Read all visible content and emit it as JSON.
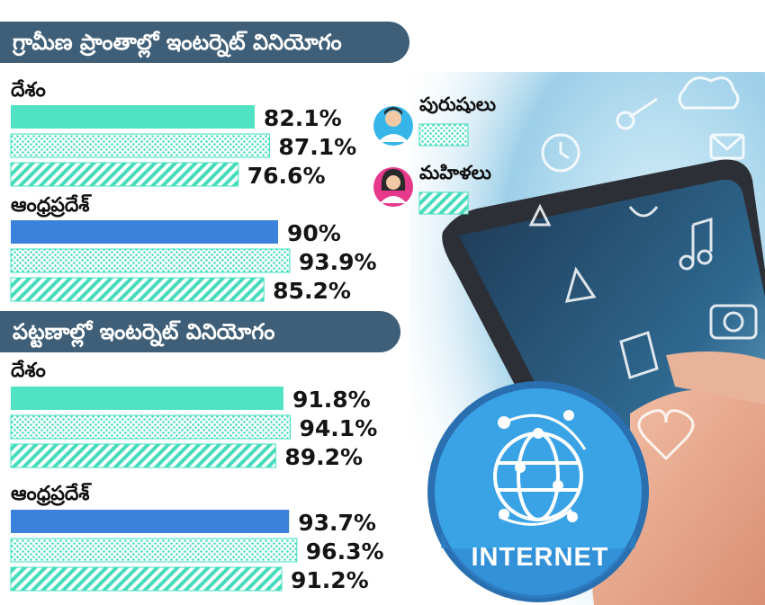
{
  "legend": {
    "men": {
      "label": "పురుషులు",
      "icon": "man-icon"
    },
    "women": {
      "label": "మహిళలు",
      "icon": "woman-icon"
    }
  },
  "colors": {
    "banner": "#3f5f78",
    "total": "#4fe3c3",
    "country_total": "#4fe3c3",
    "ap_total": "#3a82db",
    "men_pattern": "dots",
    "women_pattern": "diagonal-stripes",
    "bar_outline": "#40e0c0"
  },
  "internet_badge": {
    "label": "INTERNET",
    "icon": "globe-network-icon"
  },
  "chart_data": {
    "type": "bar",
    "orientation": "horizontal",
    "legend_position": "top-right",
    "xlim": [
      0,
      100
    ],
    "series_order": [
      "total",
      "men",
      "women"
    ],
    "panels": [
      {
        "title": "గ్రామీణ ప్రాంతాల్లో ఇంటర్నెట్ వినియోగం",
        "groups": [
          {
            "name": "దేశం",
            "total": 82.1,
            "men": 87.1,
            "women": 76.6,
            "labels": {
              "total": "82.1%",
              "men": "87.1%",
              "women": "76.6%"
            }
          },
          {
            "name": "ఆంధ్రప్రదేశ్",
            "total": 90,
            "men": 93.9,
            "women": 85.2,
            "labels": {
              "total": "90%",
              "men": "93.9%",
              "women": "85.2%"
            }
          }
        ]
      },
      {
        "title": "పట్టణాల్లో ఇంటర్నెట్ వినియోగం",
        "groups": [
          {
            "name": "దేశం",
            "total": 91.8,
            "men": 94.1,
            "women": 89.2,
            "labels": {
              "total": "91.8%",
              "men": "94.1%",
              "women": "89.2%"
            }
          },
          {
            "name": "ఆంధ్రప్రదేశ్",
            "total": 93.7,
            "men": 96.3,
            "women": 91.2,
            "labels": {
              "total": "93.7%",
              "men": "96.3%",
              "women": "91.2%"
            }
          }
        ]
      }
    ]
  }
}
